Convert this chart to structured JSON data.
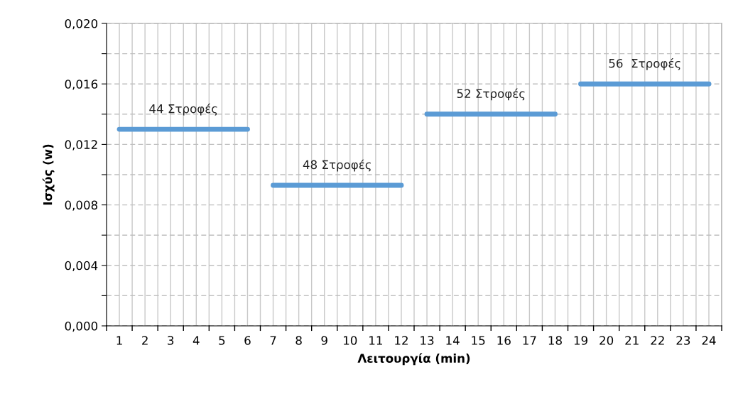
{
  "chart_data": {
    "type": "line",
    "xlabel": "Λειτουργία (min)",
    "ylabel": "Ισχύς (w)",
    "categories": [
      "1",
      "2",
      "3",
      "4",
      "5",
      "6",
      "7",
      "8",
      "9",
      "10",
      "11",
      "12",
      "13",
      "14",
      "15",
      "16",
      "17",
      "18",
      "19",
      "20",
      "21",
      "22",
      "23",
      "24"
    ],
    "series": [
      {
        "name": "44 Στροφές",
        "color": "#5b9bd5",
        "values": [
          0.013,
          0.013,
          0.013,
          0.013,
          0.013,
          0.013,
          null,
          null,
          null,
          null,
          null,
          null,
          null,
          null,
          null,
          null,
          null,
          null,
          null,
          null,
          null,
          null,
          null,
          null
        ]
      },
      {
        "name": "48 Στροφές",
        "color": "#5b9bd5",
        "values": [
          null,
          null,
          null,
          null,
          null,
          null,
          0.0093,
          0.0093,
          0.0093,
          0.0093,
          0.0093,
          0.0093,
          null,
          null,
          null,
          null,
          null,
          null,
          null,
          null,
          null,
          null,
          null,
          null
        ]
      },
      {
        "name": "52 Στροφές",
        "color": "#5b9bd5",
        "values": [
          null,
          null,
          null,
          null,
          null,
          null,
          null,
          null,
          null,
          null,
          null,
          null,
          0.014,
          0.014,
          0.014,
          0.014,
          0.014,
          0.014,
          null,
          null,
          null,
          null,
          null,
          null
        ]
      },
      {
        "name": "56  Στροφές",
        "color": "#5b9bd5",
        "values": [
          null,
          null,
          null,
          null,
          null,
          null,
          null,
          null,
          null,
          null,
          null,
          null,
          null,
          null,
          null,
          null,
          null,
          null,
          0.016,
          0.016,
          0.016,
          0.016,
          0.016,
          0.016
        ]
      }
    ],
    "ylim": [
      0,
      0.02
    ],
    "yticks": [
      {
        "value": 0,
        "label": "0,000"
      },
      {
        "value": 0.002,
        "label": null
      },
      {
        "value": 0.004,
        "label": "0,004"
      },
      {
        "value": 0.006,
        "label": null
      },
      {
        "value": 0.008,
        "label": "0,008"
      },
      {
        "value": 0.01,
        "label": null
      },
      {
        "value": 0.012,
        "label": "0,012"
      },
      {
        "value": 0.014,
        "label": null
      },
      {
        "value": 0.016,
        "label": "0,016"
      },
      {
        "value": 0.018,
        "label": null
      },
      {
        "value": 0.02,
        "label": "0,020"
      }
    ],
    "grid": true,
    "marker": "none",
    "line_style": "solid"
  }
}
